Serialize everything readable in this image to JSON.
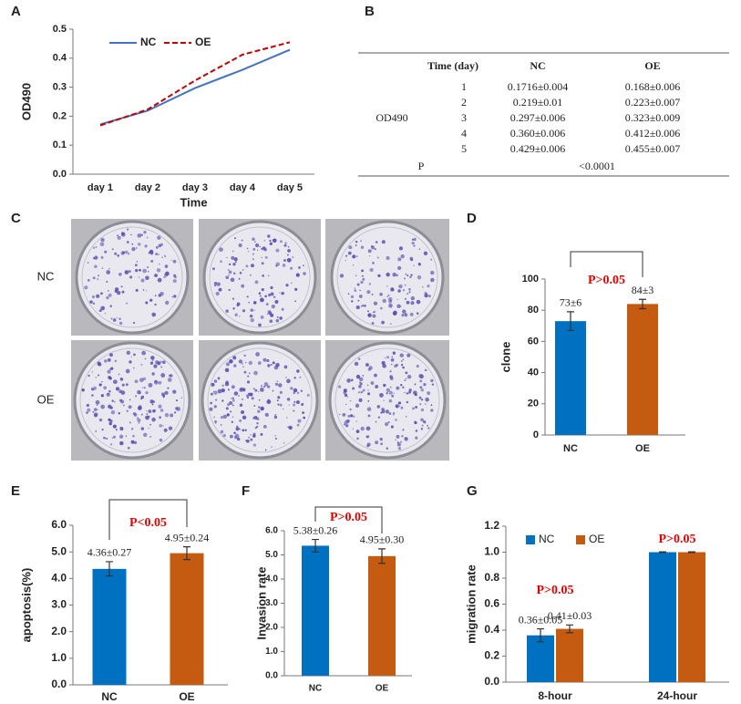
{
  "chart_data": [
    {
      "panel": "A",
      "type": "line",
      "categories": [
        "day 1",
        "day 2",
        "day 3",
        "day 4",
        "day 5"
      ],
      "series": [
        {
          "name": "NC",
          "color": "#4472c4",
          "dashed": false,
          "values": [
            0.1716,
            0.219,
            0.297,
            0.36,
            0.429
          ]
        },
        {
          "name": "OE",
          "color": "#c00000",
          "dashed": true,
          "values": [
            0.168,
            0.223,
            0.323,
            0.412,
            0.455
          ]
        }
      ],
      "ylim": [
        0,
        0.5
      ],
      "yticks": [
        {
          "value": 0,
          "label": "0.0"
        },
        0.1,
        0.2,
        0.3,
        0.4,
        0.5
      ],
      "x_label": "Time",
      "y_label": "OD490",
      "legend": "top-left"
    },
    {
      "panel": "D",
      "type": "bar",
      "categories": [
        "NC",
        "OE"
      ],
      "values": [
        73,
        84
      ],
      "errors": [
        6,
        3
      ],
      "value_labels": [
        "73±6",
        "84±3"
      ],
      "colors": [
        "#0070c0",
        "#c55a11"
      ],
      "ylim": [
        0,
        100
      ],
      "yticks": [
        0,
        20,
        40,
        60,
        80,
        100
      ],
      "y_label": "clone",
      "annotation": "P>0.05",
      "annotation_color": "#e00000"
    },
    {
      "panel": "E",
      "type": "bar",
      "categories": [
        "NC",
        "OE"
      ],
      "values": [
        4.36,
        4.95
      ],
      "errors": [
        0.27,
        0.24
      ],
      "value_labels": [
        "4.36±0.27",
        "4.95±0.24"
      ],
      "colors": [
        "#0070c0",
        "#c55a11"
      ],
      "ylim": [
        0,
        6
      ],
      "yticks": [
        {
          "value": 0,
          "label": "0.0"
        },
        {
          "value": 1,
          "label": "1.0"
        },
        {
          "value": 2,
          "label": "2.0"
        },
        {
          "value": 3,
          "label": "3.0"
        },
        {
          "value": 4,
          "label": "4.0"
        },
        {
          "value": 5,
          "label": "5.0"
        },
        {
          "value": 6,
          "label": "6.0"
        }
      ],
      "y_label": "apoptosis(%)",
      "annotation": "P<0.05",
      "annotation_color": "#e00000"
    },
    {
      "panel": "F",
      "type": "bar",
      "categories": [
        "NC",
        "OE"
      ],
      "values": [
        5.38,
        4.95
      ],
      "errors": [
        0.26,
        0.3
      ],
      "value_labels": [
        "5.38±0.26",
        "4.95±0.30"
      ],
      "colors": [
        "#0070c0",
        "#c55a11"
      ],
      "ylim": [
        0,
        6
      ],
      "yticks": [
        {
          "value": 0,
          "label": "0.0"
        },
        {
          "value": 1,
          "label": "1.0"
        },
        {
          "value": 2,
          "label": "2.0"
        },
        {
          "value": 3,
          "label": "3.0"
        },
        {
          "value": 4,
          "label": "4.0"
        },
        {
          "value": 5,
          "label": "5.0"
        },
        {
          "value": 6,
          "label": "6.0"
        }
      ],
      "y_label": "Invasion rate",
      "annotation": "P>0.05",
      "annotation_color": "#e00000"
    },
    {
      "panel": "G",
      "type": "grouped_bar",
      "categories": [
        "8-hour",
        "24-hour"
      ],
      "series": [
        {
          "name": "NC",
          "color": "#0070c0",
          "values": [
            0.36,
            1.0
          ],
          "errors": [
            0.05,
            0.003
          ],
          "value_labels": [
            "0.36±0.05",
            null
          ]
        },
        {
          "name": "OE",
          "color": "#c55a11",
          "values": [
            0.41,
            1.0
          ],
          "errors": [
            0.03,
            0.003
          ],
          "value_labels": [
            "0.41±0.03",
            null
          ]
        }
      ],
      "ylim": [
        0,
        1.2
      ],
      "yticks": [
        {
          "value": 0,
          "label": "0.0"
        },
        0.2,
        0.4,
        0.6,
        0.8,
        {
          "value": 1,
          "label": "1.0"
        },
        1.2
      ],
      "y_label": "migration rate",
      "legend": "top-left",
      "annotations": [
        "P>0.05",
        "P>0.05"
      ],
      "annotation_color": "#e00000"
    }
  ],
  "table": {
    "panel": "B",
    "header": [
      "Time (day)",
      "NC",
      "OE"
    ],
    "row_label": "OD490",
    "rows": [
      [
        "1",
        "0.1716±0.004",
        "0.168±0.006"
      ],
      [
        "2",
        "0.219±0.01",
        "0.223±0.007"
      ],
      [
        "3",
        "0.297±0.006",
        "0.323±0.009"
      ],
      [
        "4",
        "0.360±0.006",
        "0.412±0.006"
      ],
      [
        "5",
        "0.429±0.006",
        "0.455±0.007"
      ]
    ],
    "p_label": "P",
    "p_value": "<0.0001"
  },
  "photos": {
    "panel": "C",
    "rows": [
      "NC",
      "OE"
    ]
  }
}
